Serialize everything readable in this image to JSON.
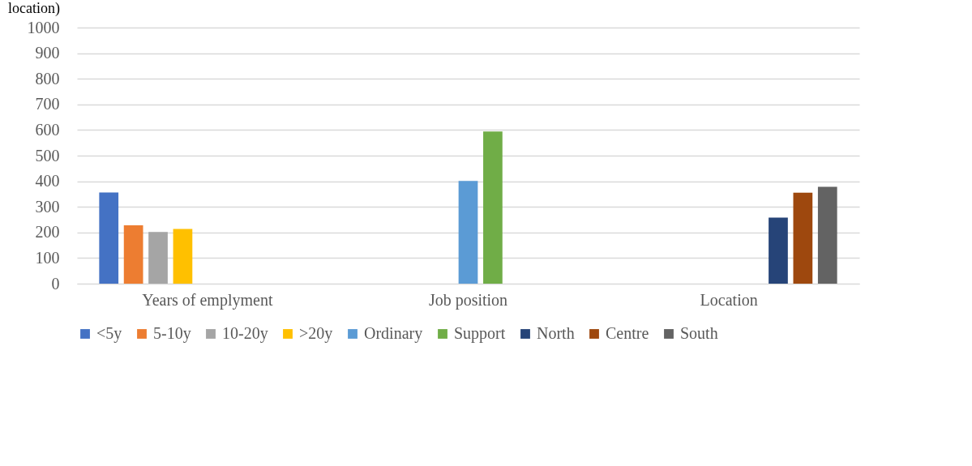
{
  "chart_data": {
    "type": "bar",
    "title": "location)",
    "categories": [
      "Years of emplyment",
      "Job position",
      "Location"
    ],
    "series": [
      {
        "name": "<5y",
        "color": "#4472c4",
        "values": [
          356,
          null,
          null
        ]
      },
      {
        "name": "5-10y",
        "color": "#ed7d31",
        "values": [
          228,
          null,
          null
        ]
      },
      {
        "name": "10-20y",
        "color": "#a5a5a5",
        "values": [
          202,
          null,
          null
        ]
      },
      {
        "name": ">20y",
        "color": "#ffc000",
        "values": [
          214,
          null,
          null
        ]
      },
      {
        "name": "Ordinary",
        "color": "#5b9bd5",
        "values": [
          null,
          401,
          null
        ]
      },
      {
        "name": "Support",
        "color": "#70ad47",
        "values": [
          null,
          594,
          null
        ]
      },
      {
        "name": "North",
        "color": "#264478",
        "values": [
          null,
          null,
          258
        ]
      },
      {
        "name": "Centre",
        "color": "#9e480e",
        "values": [
          null,
          null,
          355
        ]
      },
      {
        "name": "South",
        "color": "#636363",
        "values": [
          null,
          null,
          378
        ]
      }
    ],
    "ylim": [
      0,
      1000
    ],
    "yticks": [
      0,
      100,
      200,
      300,
      400,
      500,
      600,
      700,
      800,
      900,
      1000
    ],
    "grid": "y",
    "legend": "bottom"
  }
}
